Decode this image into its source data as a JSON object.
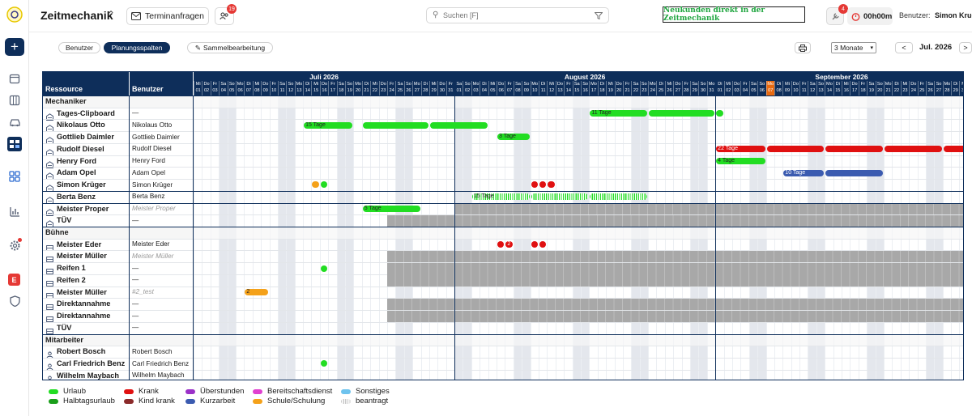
{
  "app": {
    "title": "Zeitmechanik"
  },
  "header": {
    "terminanfragen": "Terminanfragen",
    "bell_badge": "19",
    "search_placeholder": "Suchen [F]",
    "promo": "Neukunden direkt in der Zeitmechanik",
    "notif_badge": "4",
    "timer": "00h00m",
    "user_label": "Benutzer:",
    "user_name": "Simon Krug"
  },
  "toolbar": {
    "tab_users": "Benutzer",
    "tab_columns": "Planungsspalten",
    "bulk_edit": "Sammelbearbeitung",
    "range": "3 Monate",
    "period": "Jul. 2026",
    "prev": "<",
    "next": ">"
  },
  "grid": {
    "col_resource": "Ressource",
    "col_user": "Benutzer",
    "start_date": "2026-07-01",
    "months": [
      {
        "label": "Juli 2026",
        "days": 31
      },
      {
        "label": "August 2026",
        "days": 31
      },
      {
        "label": "September 2026",
        "days": 30
      }
    ],
    "weekday_labels": [
      "Mo",
      "Di",
      "Mi",
      "Do",
      "Fr",
      "Sa",
      "So"
    ],
    "today": "2026-09-07",
    "rows": [
      {
        "type": "group",
        "label": "Mechaniker"
      },
      {
        "type": "res",
        "icon": "building",
        "name": "Tages-Clipboard",
        "user": "—"
      },
      {
        "type": "res",
        "icon": "building",
        "name": "Nikolaus Otto",
        "user": "Nikolaus Otto"
      },
      {
        "type": "res",
        "icon": "building",
        "name": "Gottlieb Daimler",
        "user": "Gottlieb Daimler"
      },
      {
        "type": "res",
        "icon": "building",
        "name": "Rudolf Diesel",
        "user": "Rudolf Diesel"
      },
      {
        "type": "res",
        "icon": "building",
        "name": "Henry Ford",
        "user": "Henry Ford"
      },
      {
        "type": "res",
        "icon": "building",
        "name": "Adam Opel",
        "user": "Adam Opel"
      },
      {
        "type": "res",
        "icon": "building",
        "name": "Simon Krüger",
        "user": "Simon Krüger"
      },
      {
        "type": "res",
        "icon": "building",
        "name": "Berta Benz",
        "user": "Berta Benz",
        "sep_top": true
      },
      {
        "type": "res",
        "icon": "building",
        "name": "Meister Proper",
        "user": "Meister Proper",
        "user_muted": true,
        "sep_top": true,
        "grey_from": "2026-08-01"
      },
      {
        "type": "res",
        "icon": "building",
        "name": "TÜV",
        "user": "—",
        "grey_from": "2026-07-24"
      },
      {
        "type": "group",
        "label": "Bühne"
      },
      {
        "type": "res",
        "icon": "lift",
        "name": "Meister Eder",
        "user": "Meister Eder"
      },
      {
        "type": "res",
        "icon": "lift",
        "name": "Meister Müller",
        "user": "Meister Müller",
        "user_muted": true,
        "grey_from": "2026-07-24"
      },
      {
        "type": "res",
        "icon": "lift",
        "name": "Reifen 1",
        "user": "—",
        "grey_from": "2026-07-24"
      },
      {
        "type": "res",
        "icon": "lift",
        "name": "Reifen 2",
        "user": "—",
        "grey_from": "2026-07-24"
      },
      {
        "type": "res",
        "icon": "lift",
        "name": "Meister Müller",
        "user": "#2_test",
        "user_muted": true
      },
      {
        "type": "res",
        "icon": "lift",
        "name": "Direktannahme",
        "user": "—",
        "grey_from": "2026-07-24"
      },
      {
        "type": "res",
        "icon": "lift",
        "name": "Direktannahme",
        "user": "—",
        "grey_from": "2026-07-24"
      },
      {
        "type": "res",
        "icon": "lift",
        "name": "TÜV",
        "user": "—"
      },
      {
        "type": "group",
        "label": "Mitarbeiter"
      },
      {
        "type": "res",
        "icon": "person",
        "name": "Robert Bosch",
        "user": "Robert Bosch"
      },
      {
        "type": "res",
        "icon": "person",
        "name": "Carl Friedrich Benz",
        "user": "Carl Friedrich Benz"
      },
      {
        "type": "res",
        "icon": "person",
        "name": "Wilhelm Maybach",
        "user": "Wilhelm Maybach"
      }
    ],
    "bars": [
      {
        "row": 1,
        "start": "2026-09-01",
        "end": "2026-09-01",
        "color": "#22dd22",
        "label": ""
      },
      {
        "row": 1,
        "start": "2026-08-17",
        "end": "2026-08-23",
        "color": "#22dd22",
        "label": "11 Tage"
      },
      {
        "row": 1,
        "start": "2026-08-24",
        "end": "2026-08-31",
        "color": "#22dd22",
        "label": ""
      },
      {
        "row": 2,
        "start": "2026-07-14",
        "end": "2026-07-19",
        "color": "#22dd22",
        "label": "15 Tage"
      },
      {
        "row": 2,
        "start": "2026-07-21",
        "end": "2026-07-28",
        "color": "#22dd22",
        "label": ""
      },
      {
        "row": 2,
        "start": "2026-07-29",
        "end": "2026-08-04",
        "color": "#22dd22",
        "label": ""
      },
      {
        "row": 3,
        "start": "2026-08-06",
        "end": "2026-08-09",
        "color": "#22dd22",
        "label": "3 Tage"
      },
      {
        "row": 4,
        "start": "2026-09-01",
        "end": "2026-09-06",
        "color": "#e01010",
        "label": "22 Tage",
        "light": true
      },
      {
        "row": 4,
        "start": "2026-09-07",
        "end": "2026-09-13",
        "color": "#e01010",
        "label": ""
      },
      {
        "row": 4,
        "start": "2026-09-14",
        "end": "2026-09-20",
        "color": "#e01010",
        "label": ""
      },
      {
        "row": 4,
        "start": "2026-09-21",
        "end": "2026-09-27",
        "color": "#e01010",
        "label": ""
      },
      {
        "row": 4,
        "start": "2026-09-28",
        "end": "2026-09-30",
        "color": "#e01010",
        "label": ""
      },
      {
        "row": 5,
        "start": "2026-09-01",
        "end": "2026-09-06",
        "color": "#22dd22",
        "label": "4 Tage"
      },
      {
        "row": 6,
        "start": "2026-09-09",
        "end": "2026-09-13",
        "color": "#3b5bb0",
        "label": "10 Tage",
        "light": true
      },
      {
        "row": 6,
        "start": "2026-09-14",
        "end": "2026-09-20",
        "color": "#3b5bb0",
        "label": ""
      },
      {
        "row": 7,
        "start": "2026-07-15",
        "end": "2026-07-15",
        "color": "#f4a11a",
        "label": ""
      },
      {
        "row": 7,
        "start": "2026-07-16",
        "end": "2026-07-16",
        "color": "#22dd22",
        "label": ""
      },
      {
        "row": 7,
        "start": "2026-08-10",
        "end": "2026-08-10",
        "color": "#e01010",
        "label": ""
      },
      {
        "row": 7,
        "start": "2026-08-11",
        "end": "2026-08-11",
        "color": "#e01010",
        "label": ""
      },
      {
        "row": 7,
        "start": "2026-08-12",
        "end": "2026-08-12",
        "color": "#e01010",
        "label": ""
      },
      {
        "row": 8,
        "start": "2026-08-03",
        "end": "2026-08-09",
        "color": "#22dd22",
        "label": "15 Tage",
        "striped": true
      },
      {
        "row": 8,
        "start": "2026-08-10",
        "end": "2026-08-16",
        "color": "#22dd22",
        "label": "",
        "striped": true
      },
      {
        "row": 8,
        "start": "2026-08-17",
        "end": "2026-08-23",
        "color": "#22dd22",
        "label": "",
        "striped": true
      },
      {
        "row": 9,
        "start": "2026-07-21",
        "end": "2026-07-27",
        "color": "#22dd22",
        "label": "5 Tage"
      },
      {
        "row": 12,
        "start": "2026-08-06",
        "end": "2026-08-06",
        "color": "#e01010",
        "label": ""
      },
      {
        "row": 12,
        "start": "2026-08-07",
        "end": "2026-08-07",
        "color": "#e01010",
        "label": "2",
        "light": true
      },
      {
        "row": 12,
        "start": "2026-08-10",
        "end": "2026-08-10",
        "color": "#e01010",
        "label": ""
      },
      {
        "row": 12,
        "start": "2026-08-11",
        "end": "2026-08-11",
        "color": "#e01010",
        "label": ""
      },
      {
        "row": 14,
        "start": "2026-07-16",
        "end": "2026-07-16",
        "color": "#22dd22",
        "label": ""
      },
      {
        "row": 16,
        "start": "2026-07-07",
        "end": "2026-07-09",
        "color": "#f4a11a",
        "label": "2"
      },
      {
        "row": 22,
        "start": "2026-07-16",
        "end": "2026-07-16",
        "color": "#22dd22",
        "label": ""
      }
    ]
  },
  "legend": [
    {
      "label": "Urlaub",
      "color": "#22dd22"
    },
    {
      "label": "Halbtagsurlaub",
      "color": "#1a9e1a"
    },
    {
      "label": "Krank",
      "color": "#e01010"
    },
    {
      "label": "Kind krank",
      "color": "#8b2a2a"
    },
    {
      "label": "Überstunden",
      "color": "#9b30c8"
    },
    {
      "label": "Kurzarbeit",
      "color": "#3b5bb0"
    },
    {
      "label": "Bereitschaftsdienst",
      "color": "#e040d0"
    },
    {
      "label": "Schule/Schulung",
      "color": "#f4a11a"
    },
    {
      "label": "Sonstiges",
      "color": "#6ec3ee"
    },
    {
      "label": "beantragt",
      "color": "#c8c8c8"
    }
  ],
  "icons": [
    "logo-icon",
    "add-icon",
    "calendar-icon",
    "columns-icon",
    "car-icon",
    "planner-icon",
    "dashboard-icon",
    "chart-icon",
    "gear-icon",
    "e-badge-icon",
    "shield-icon"
  ]
}
